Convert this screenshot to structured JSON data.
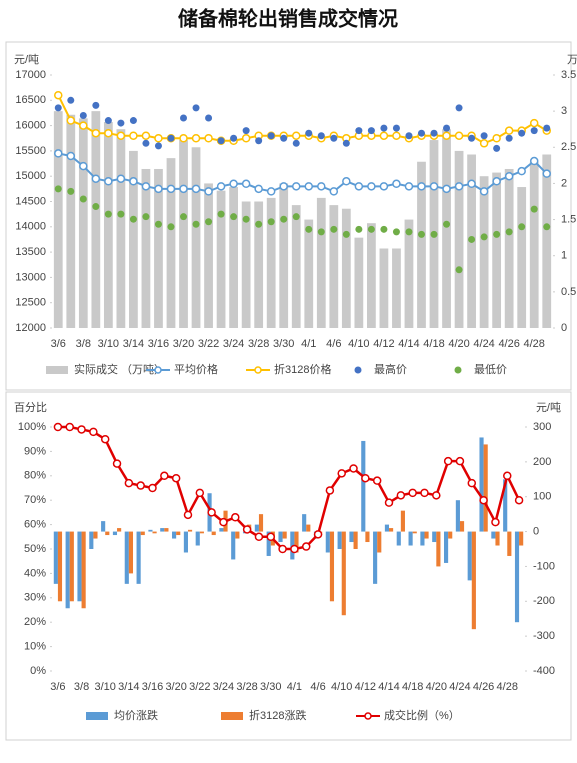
{
  "chart_data": [
    {
      "type": "combo",
      "title": "储备棉轮出销售成交情况",
      "y_label": "元/吨",
      "y2_label": "万吨",
      "categories": [
        "3/6",
        null,
        "3/8",
        null,
        "3/10",
        null,
        "3/14",
        null,
        "3/16",
        null,
        "3/20",
        null,
        "3/22",
        null,
        "3/24",
        null,
        "3/28",
        null,
        "3/30",
        null,
        "4/1",
        null,
        "4/6",
        null,
        "4/10",
        null,
        "4/12",
        null,
        "4/14",
        null,
        "4/18",
        null,
        "4/20",
        null,
        "4/24",
        null,
        "4/26",
        null,
        "4/28",
        null
      ],
      "ylim": [
        12000,
        17000
      ],
      "yticks": [
        12000,
        12500,
        13000,
        13500,
        14000,
        14500,
        15000,
        15500,
        16000,
        16500,
        17000
      ],
      "y2lim": [
        0,
        3.5
      ],
      "y2ticks": [
        0,
        0.5,
        1,
        1.5,
        2,
        2.5,
        3,
        3.5
      ],
      "series": [
        {
          "name": "实际成交 （万吨）",
          "type": "bar",
          "axis": "y2",
          "color": "#c9c9c9",
          "values": [
            3.0,
            2.95,
            2.9,
            3.0,
            2.85,
            2.75,
            2.45,
            2.2,
            2.2,
            2.35,
            2.6,
            2.5,
            2.0,
            1.9,
            1.95,
            1.75,
            1.75,
            1.8,
            2.0,
            1.7,
            1.5,
            1.8,
            1.7,
            1.65,
            1.25,
            1.45,
            1.1,
            1.1,
            1.5,
            2.3,
            2.6,
            2.75,
            2.45,
            2.4,
            2.1,
            2.15,
            2.2,
            1.95,
            2.3,
            2.4
          ]
        },
        {
          "name": "平均价格",
          "type": "line",
          "color": "#5b9bd5",
          "values": [
            15450,
            15400,
            15200,
            14950,
            14900,
            14950,
            14900,
            14800,
            14750,
            14750,
            14750,
            14750,
            14700,
            14800,
            14850,
            14850,
            14750,
            14700,
            14800,
            14800,
            14800,
            14800,
            14700,
            14900,
            14800,
            14800,
            14800,
            14850,
            14800,
            14800,
            14800,
            14750,
            14800,
            14850,
            14700,
            14900,
            15000,
            15100,
            15300,
            15050
          ]
        },
        {
          "name": "折3128价格",
          "type": "line",
          "color": "#ffc000",
          "values": [
            16600,
            16100,
            16000,
            15850,
            15850,
            15800,
            15800,
            15800,
            15750,
            15750,
            15750,
            15750,
            15750,
            15700,
            15700,
            15750,
            15800,
            15800,
            15800,
            15800,
            15800,
            15750,
            15800,
            15750,
            15800,
            15800,
            15800,
            15800,
            15750,
            15800,
            15800,
            15800,
            15800,
            15800,
            15650,
            15750,
            15900,
            15900,
            16050,
            15900
          ]
        },
        {
          "name": "最高价",
          "type": "scatter",
          "color": "#4472c4",
          "values": [
            16350,
            16500,
            16200,
            16400,
            16100,
            16050,
            16100,
            15650,
            15600,
            15750,
            16150,
            16350,
            16150,
            15700,
            15750,
            15900,
            15700,
            15800,
            15750,
            15650,
            15850,
            15800,
            15750,
            15650,
            15900,
            15900,
            15950,
            15950,
            15800,
            15850,
            15850,
            15950,
            16350,
            15750,
            15800,
            15550,
            15750,
            15850,
            15900,
            15950
          ]
        },
        {
          "name": "最低价",
          "type": "scatter",
          "color": "#70ad47",
          "values": [
            14750,
            14700,
            14550,
            14400,
            14250,
            14250,
            14150,
            14200,
            14050,
            14000,
            14200,
            14050,
            14100,
            14250,
            14200,
            14150,
            14050,
            14100,
            14150,
            14200,
            13950,
            13900,
            13950,
            13850,
            13950,
            13950,
            13950,
            13900,
            13900,
            13850,
            13850,
            14050,
            13150,
            13750,
            13800,
            13850,
            13900,
            14000,
            14350,
            14000
          ]
        }
      ]
    },
    {
      "type": "combo",
      "y_label": "百分比",
      "y2_label": "元/吨",
      "categories": [
        "3/6",
        null,
        "3/8",
        null,
        "3/10",
        null,
        "3/14",
        null,
        "3/16",
        null,
        "3/20",
        null,
        "3/22",
        null,
        "3/24",
        null,
        "3/28",
        null,
        "3/30",
        null,
        "4/1",
        null,
        "4/6",
        null,
        "4/10",
        null,
        "4/12",
        null,
        "4/14",
        null,
        "4/18",
        null,
        "4/20",
        null,
        "4/24",
        null,
        "4/26",
        null,
        "4/28",
        null
      ],
      "ylim": [
        0,
        100
      ],
      "yticks": [
        {
          "value": 0,
          "label": "0%"
        },
        {
          "value": 10,
          "label": "10%"
        },
        {
          "value": 20,
          "label": "20%"
        },
        {
          "value": 30,
          "label": "30%"
        },
        {
          "value": 40,
          "label": "40%"
        },
        {
          "value": 50,
          "label": "50%"
        },
        {
          "value": 60,
          "label": "60%"
        },
        {
          "value": 70,
          "label": "70%"
        },
        {
          "value": 80,
          "label": "80%"
        },
        {
          "value": 90,
          "label": "90%"
        },
        {
          "value": 100,
          "label": "100%"
        }
      ],
      "y2lim": [
        -400,
        300
      ],
      "y2ticks": [
        -400,
        -300,
        -200,
        -100,
        0,
        100,
        200,
        300
      ],
      "series": [
        {
          "name": "均价涨跌",
          "type": "bar",
          "axis": "y2",
          "color": "#5b9bd5",
          "values": [
            -150,
            -220,
            -200,
            -50,
            30,
            -10,
            -150,
            -150,
            5,
            10,
            -20,
            -60,
            -40,
            110,
            10,
            -80,
            -5,
            20,
            -70,
            -30,
            -80,
            50,
            -20,
            -60,
            -50,
            -30,
            260,
            -150,
            20,
            -40,
            -40,
            -40,
            -30,
            -90,
            90,
            -140,
            270,
            -20,
            150,
            -260
          ]
        },
        {
          "name": "折3128涨跌",
          "type": "bar",
          "axis": "y2",
          "color": "#ed7d31",
          "values": [
            -200,
            -200,
            -220,
            -20,
            -10,
            10,
            -120,
            -10,
            -5,
            10,
            -10,
            5,
            -5,
            -10,
            60,
            -20,
            20,
            50,
            -40,
            -20,
            -60,
            20,
            -10,
            -200,
            -240,
            -50,
            -30,
            -60,
            10,
            60,
            -5,
            -20,
            -100,
            -20,
            30,
            -280,
            250,
            -40,
            -70,
            -40
          ]
        },
        {
          "name": "成交比例（%）",
          "type": "line",
          "color": "#e00000",
          "values": [
            100,
            100,
            99,
            98,
            95,
            85,
            77,
            76,
            75,
            80,
            79,
            64,
            73,
            65,
            61,
            63,
            58,
            55,
            55,
            50,
            50,
            51,
            56,
            74,
            81,
            83,
            79,
            78,
            69,
            72,
            73,
            73,
            72,
            86,
            86,
            77,
            70,
            61,
            80,
            70
          ]
        }
      ]
    }
  ]
}
